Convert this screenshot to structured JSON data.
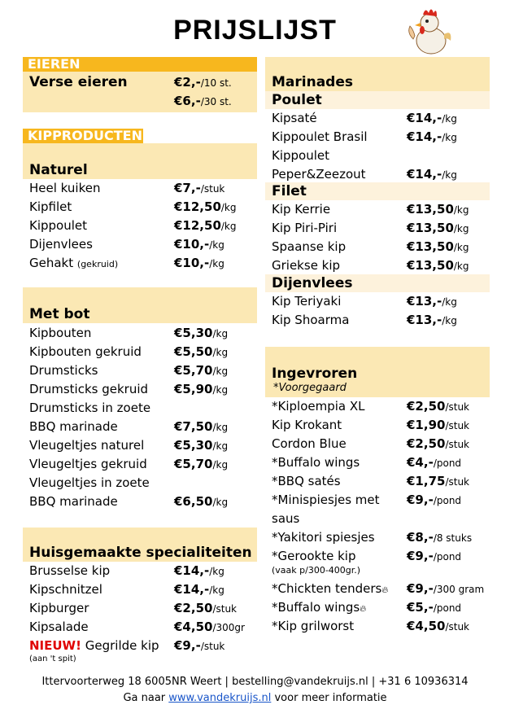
{
  "title": "PRIJSLIJST",
  "eieren": {
    "label": "EIEREN",
    "name": "Verse eieren",
    "price1": "€2,-",
    "unit1": "/10 st.",
    "price2": "€6,-",
    "unit2": "/30 st."
  },
  "kipproducten": {
    "label": "KIPPRODUCTEN"
  },
  "naturel": {
    "header": "Naturel",
    "items": [
      {
        "name": "Heel kuiken",
        "price": "€7,-",
        "unit": "/stuk"
      },
      {
        "name": "Kipfilet",
        "price": "€12,50",
        "unit": "/kg"
      },
      {
        "name": "Kippoulet",
        "price": "€12,50",
        "unit": "/kg"
      },
      {
        "name": "Dijenvlees",
        "price": "€10,-",
        "unit": "/kg"
      },
      {
        "name": "Gehakt",
        "note": "(gekruid)",
        "price": "€10,-",
        "unit": "/kg"
      }
    ]
  },
  "metbot": {
    "header": "Met bot",
    "items": [
      {
        "name": "Kipbouten",
        "price": "€5,30",
        "unit": "/kg"
      },
      {
        "name": "Kipbouten gekruid",
        "price": "€5,50",
        "unit": "/kg"
      },
      {
        "name": "Drumsticks",
        "price": "€5,70",
        "unit": "/kg"
      },
      {
        "name": "Drumsticks gekruid",
        "price": "€5,90",
        "unit": "/kg"
      },
      {
        "name": "Drumsticks in zoete",
        "price": "",
        "unit": ""
      },
      {
        "name": "BBQ marinade",
        "price": "€7,50",
        "unit": "/kg"
      },
      {
        "name": "Vleugeltjes naturel",
        "price": "€5,30",
        "unit": "/kg"
      },
      {
        "name": "Vleugeltjes gekruid",
        "price": "€5,70",
        "unit": "/kg"
      },
      {
        "name": "Vleugeltjes in zoete",
        "price": "",
        "unit": ""
      },
      {
        "name": "BBQ marinade",
        "price": "€6,50",
        "unit": "/kg"
      }
    ]
  },
  "huisgemaakt": {
    "header": "Huisgemaakte specialiteiten",
    "items": [
      {
        "name": "Brusselse kip",
        "price": "€14,-",
        "unit": "/kg"
      },
      {
        "name": "Kipschnitzel",
        "price": "€14,-",
        "unit": "/kg"
      },
      {
        "name": "Kipburger",
        "price": "€2,50",
        "unit": "/stuk"
      },
      {
        "name": "Kipsalade",
        "price": "€4,50",
        "unit": "/300gr"
      }
    ],
    "new_label": "NIEUW!",
    "new_name": "Gegrilde kip",
    "new_price": "€9,-",
    "new_unit": "/stuk",
    "new_note": "(aan 't spit)"
  },
  "marinades": {
    "header": "Marinades",
    "poulet_header": "Poulet",
    "poulet": [
      {
        "name": "Kipsaté",
        "price": "€14,-",
        "unit": "/kg"
      },
      {
        "name": "Kippoulet Brasil",
        "price": "€14,-",
        "unit": "/kg"
      },
      {
        "name": "Kippoulet",
        "price": "",
        "unit": ""
      },
      {
        "name": "Peper&Zeezout",
        "price": "€14,-",
        "unit": "/kg"
      }
    ],
    "filet_header": "Filet",
    "filet": [
      {
        "name": "Kip Kerrie",
        "price": "€13,50",
        "unit": "/kg"
      },
      {
        "name": "Kip Piri-Piri",
        "price": "€13,50",
        "unit": "/kg"
      },
      {
        "name": "Spaanse kip",
        "price": "€13,50",
        "unit": "/kg"
      },
      {
        "name": "Griekse kip",
        "price": "€13,50",
        "unit": "/kg"
      }
    ],
    "dijen_header": "Dijenvlees",
    "dijen": [
      {
        "name": "Kip Teriyaki",
        "price": "€13,-",
        "unit": "/kg"
      },
      {
        "name": "Kip Shoarma",
        "price": "€13,-",
        "unit": "/kg"
      }
    ]
  },
  "ingevroren": {
    "header": "Ingevroren",
    "subheader": "*Voorgegaard",
    "items": [
      {
        "name": "*Kiploempia XL",
        "price": "€2,50",
        "unit": "/stuk"
      },
      {
        "name": "Kip Krokant",
        "price": "€1,90",
        "unit": "/stuk"
      },
      {
        "name": "Cordon Blue",
        "price": "€2,50",
        "unit": "/stuk"
      },
      {
        "name": "*Buffalo wings",
        "price": "€4,-",
        "unit": "/pond"
      },
      {
        "name": "*BBQ satés",
        "price": "€1,75",
        "unit": "/stuk"
      },
      {
        "name": "*Minispiesjes met",
        "price": "€9,-",
        "unit": "/pond"
      },
      {
        "name": "saus",
        "price": "",
        "unit": ""
      },
      {
        "name": "*Yakitori spiesjes",
        "price": "€8,-",
        "unit": "/8 stuks"
      },
      {
        "name": "*Gerookte kip",
        "price": "€9,-",
        "unit": "/pond"
      }
    ],
    "gerookte_note": "(vaak p/300-400gr.)",
    "items2": [
      {
        "name": "*Chickten tenders",
        "price": "€9,-",
        "unit": "/300 gram"
      },
      {
        "name": "*Buffalo wings",
        "price": "€5,-",
        "unit": "/pond"
      },
      {
        "name": "*Kip grilworst",
        "price": "€4,50",
        "unit": "/stuk"
      }
    ]
  },
  "footer": {
    "line1": "Ittervoorterweg 18 6005NR Weert  | bestelling@vandekruijs.nl  | +31 6 10936314",
    "prefix": "Ga naar ",
    "link": "www.vandekruijs.nl",
    "suffix": " voor meer informatie"
  },
  "colors": {
    "accent": "#f7b71e",
    "section_bg": "#fbe8b4",
    "sub_bg": "#fdf2dc",
    "new": "#e00000",
    "link": "#1a56c9"
  }
}
